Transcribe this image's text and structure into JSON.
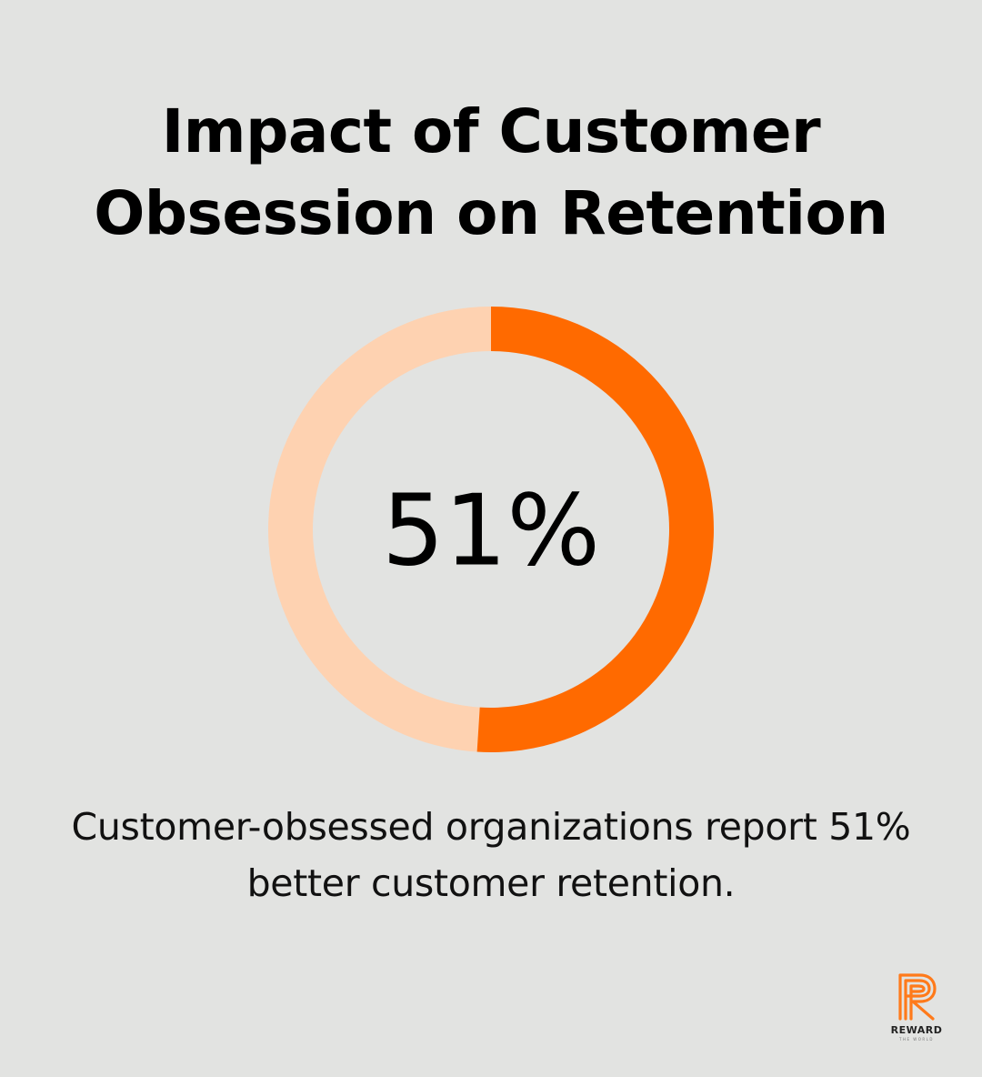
{
  "title": "Impact of Customer\nObsession on Retention",
  "chart_data": {
    "type": "pie",
    "style": "donut",
    "value_percent": 51,
    "remainder_percent": 49,
    "center_label": "51%",
    "colors": {
      "value": "#ff6a00",
      "remainder": "#fed2b1"
    }
  },
  "caption": "Customer-obsessed organizations report 51% better customer retention.",
  "logo": {
    "text": "REWARD",
    "tagline": "THE WORLD",
    "color": "#ff7a1a"
  }
}
